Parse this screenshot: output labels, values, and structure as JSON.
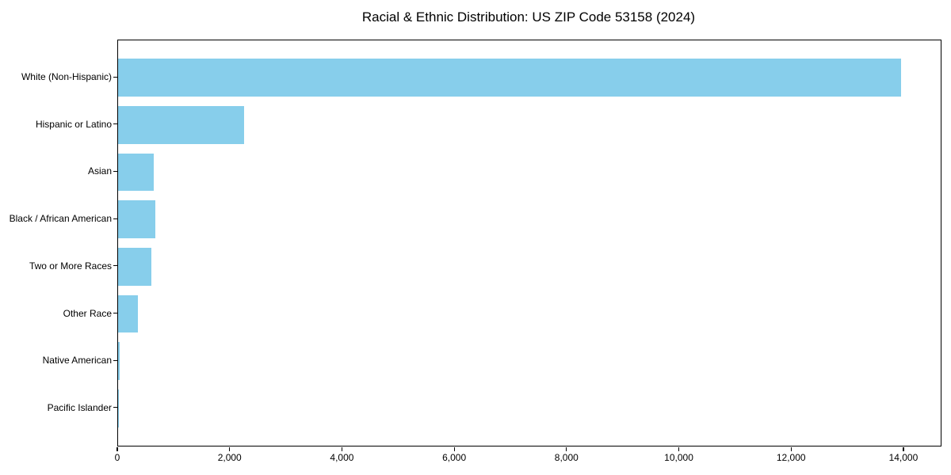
{
  "chart_data": {
    "type": "bar",
    "orientation": "horizontal",
    "title": "Racial & Ethnic Distribution: US ZIP Code 53158 (2024)",
    "categories": [
      "White (Non-Hispanic)",
      "Hispanic or Latino",
      "Asian",
      "Black / African American",
      "Two or More Races",
      "Other Race",
      "Native American",
      "Pacific Islander"
    ],
    "values": [
      13950,
      2250,
      640,
      660,
      590,
      350,
      25,
      5
    ],
    "xlabel": "",
    "ylabel": "",
    "xlim": [
      0,
      14650
    ],
    "xticks": [
      0,
      2000,
      4000,
      6000,
      8000,
      10000,
      12000,
      14000
    ],
    "xtick_labels": [
      "0",
      "2,000",
      "4,000",
      "6,000",
      "8,000",
      "10,000",
      "12,000",
      "14,000"
    ],
    "bar_color": "#87CEEB",
    "axis_color": "#000000",
    "grid": false,
    "legend_position": "none"
  }
}
